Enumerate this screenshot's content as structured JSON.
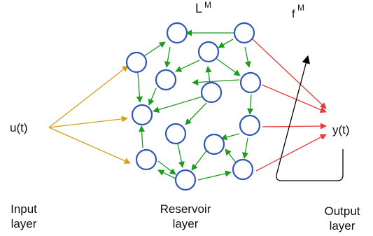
{
  "labels": {
    "input_signal": "u(t)",
    "output_signal": "y(t)",
    "reservoir_matrix": "L",
    "reservoir_matrix_sup": "M",
    "readout_function": "f",
    "readout_function_sup": "M",
    "input_layer_line1": "Input",
    "input_layer_line2": "layer",
    "reservoir_layer_line1": "Reservoir",
    "reservoir_layer_line2": "layer",
    "output_layer_line1": "Output",
    "output_layer_line2": "layer"
  },
  "colors": {
    "node_stroke": "#3057b8",
    "input_arrows": "#d4a017",
    "reservoir_arrows": "#1e9a1e",
    "output_arrows": "#e83a3a",
    "readout_curve": "#000000"
  }
}
